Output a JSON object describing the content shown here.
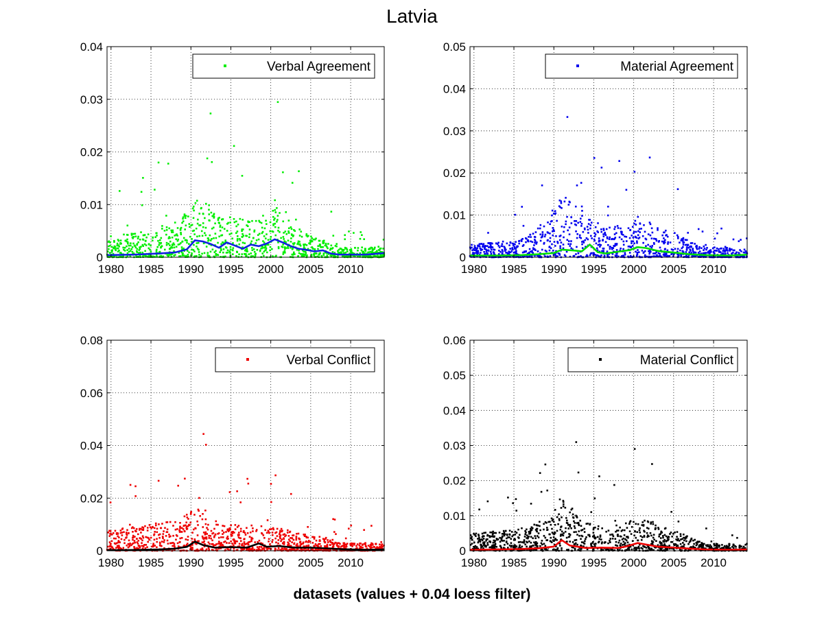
{
  "figure": {
    "title": "Latvia",
    "xlabel": "datasets (values + 0.04 loess filter)"
  },
  "chart_data": [
    {
      "type": "scatter",
      "x_ticks": [
        1980,
        1985,
        1990,
        1995,
        2000,
        2005,
        2010
      ],
      "xlim": [
        1979.5,
        2014.2
      ],
      "ylim": [
        0,
        0.04
      ],
      "y_ticks": [
        "0",
        "0.01",
        "0.02",
        "0.03",
        "0.04"
      ],
      "y_tick_values": [
        0,
        0.01,
        0.02,
        0.03,
        0.04
      ],
      "grid": true,
      "legend_position": "top-right",
      "series": [
        {
          "name": "Verbal Agreement",
          "kind": "points",
          "color": "#00ee00"
        },
        {
          "kind": "loess-line",
          "color": "#1020e0",
          "x": [
            1979.5,
            1983,
            1986,
            1988,
            1989.5,
            1990.5,
            1991.5,
            1992.5,
            1993.5,
            1994.5,
            1995.5,
            1996.5,
            1997.5,
            1998.5,
            1999.5,
            2000.5,
            2001.5,
            2002.5,
            2003.5,
            2004.5,
            2005.5,
            2006.5,
            2007.5,
            2008.5,
            2010,
            2012,
            2014.2
          ],
          "y": [
            0.0004,
            0.0005,
            0.0007,
            0.0009,
            0.0015,
            0.0032,
            0.003,
            0.0025,
            0.0018,
            0.0028,
            0.0022,
            0.0016,
            0.0024,
            0.0021,
            0.0026,
            0.0034,
            0.0028,
            0.0021,
            0.0016,
            0.0014,
            0.0011,
            0.0013,
            0.0007,
            0.0005,
            0.0005,
            0.0005,
            0.0008
          ]
        }
      ],
      "envelope": {
        "x": [
          1980,
          1985,
          1988,
          1990,
          1991,
          1993,
          1995,
          1998,
          2000,
          2001,
          2003,
          2005,
          2007,
          2009,
          2014
        ],
        "y": [
          0.004,
          0.005,
          0.007,
          0.009,
          0.012,
          0.009,
          0.008,
          0.007,
          0.009,
          0.01,
          0.006,
          0.004,
          0.003,
          0.002,
          0.0018
        ]
      },
      "seed": 11
    },
    {
      "type": "scatter",
      "x_ticks": [
        1980,
        1985,
        1990,
        1995,
        2000,
        2005,
        2010
      ],
      "xlim": [
        1979.5,
        2014.2
      ],
      "ylim": [
        0,
        0.05
      ],
      "y_ticks": [
        "0",
        "0.01",
        "0.02",
        "0.03",
        "0.04",
        "0.05"
      ],
      "y_tick_values": [
        0,
        0.01,
        0.02,
        0.03,
        0.04,
        0.05
      ],
      "grid": true,
      "legend_position": "top-right",
      "series": [
        {
          "name": "Material Agreement",
          "kind": "points",
          "color": "#0000ee"
        },
        {
          "kind": "loess-line",
          "color": "#00dd00",
          "x": [
            1979.5,
            1983,
            1986,
            1988,
            1990,
            1991,
            1992.5,
            1993.5,
            1994.5,
            1995.5,
            1996.5,
            1998,
            1999.5,
            2000.5,
            2001.5,
            2003,
            2005,
            2007,
            2009,
            2012,
            2014.2
          ],
          "y": [
            0.0004,
            0.0004,
            0.0005,
            0.0007,
            0.001,
            0.0018,
            0.0016,
            0.0014,
            0.003,
            0.0012,
            0.0009,
            0.0013,
            0.0017,
            0.0024,
            0.0022,
            0.0015,
            0.0011,
            0.0007,
            0.0005,
            0.0004,
            0.0006
          ]
        }
      ],
      "envelope": {
        "x": [
          1980,
          1985,
          1988,
          1990,
          1991,
          1993,
          1995,
          1998,
          2000,
          2001,
          2003,
          2005,
          2007,
          2009,
          2014
        ],
        "y": [
          0.003,
          0.004,
          0.007,
          0.012,
          0.015,
          0.012,
          0.009,
          0.007,
          0.009,
          0.01,
          0.007,
          0.006,
          0.004,
          0.0025,
          0.002
        ]
      },
      "seed": 23
    },
    {
      "type": "scatter",
      "x_ticks": [
        1980,
        1985,
        1990,
        1995,
        2000,
        2005,
        2010
      ],
      "xlim": [
        1979.5,
        2014.2
      ],
      "ylim": [
        0,
        0.08
      ],
      "y_ticks": [
        "0",
        "0.02",
        "0.04",
        "0.06",
        "0.08"
      ],
      "y_tick_values": [
        0,
        0.02,
        0.04,
        0.06,
        0.08
      ],
      "grid": true,
      "legend_position": "top-right",
      "series": [
        {
          "name": "Verbal Conflict",
          "kind": "points",
          "color": "#ee0000"
        },
        {
          "kind": "loess-line",
          "color": "#000000",
          "x": [
            1979.5,
            1983,
            1986,
            1988,
            1989.5,
            1990.5,
            1991.5,
            1993,
            1995,
            1997,
            1998.5,
            1999.5,
            2001,
            2003,
            2005,
            2007,
            2009,
            2012,
            2014.2
          ],
          "y": [
            0.0002,
            0.0003,
            0.0005,
            0.0008,
            0.0015,
            0.0035,
            0.0022,
            0.0012,
            0.0014,
            0.0012,
            0.0028,
            0.0015,
            0.0018,
            0.0012,
            0.0012,
            0.0009,
            0.0006,
            0.0004,
            0.0005
          ]
        }
      ],
      "envelope": {
        "x": [
          1980,
          1985,
          1988,
          1990,
          1991,
          1993,
          1995,
          1998,
          2000,
          2001,
          2003,
          2005,
          2007,
          2009,
          2014
        ],
        "y": [
          0.008,
          0.01,
          0.012,
          0.015,
          0.018,
          0.012,
          0.01,
          0.01,
          0.009,
          0.009,
          0.007,
          0.006,
          0.005,
          0.003,
          0.003
        ]
      },
      "seed": 37
    },
    {
      "type": "scatter",
      "x_ticks": [
        1980,
        1985,
        1990,
        1995,
        2000,
        2005,
        2010
      ],
      "xlim": [
        1979.5,
        2014.2
      ],
      "ylim": [
        0,
        0.06
      ],
      "y_ticks": [
        "0",
        "0.01",
        "0.02",
        "0.03",
        "0.04",
        "0.05",
        "0.06"
      ],
      "y_tick_values": [
        0,
        0.01,
        0.02,
        0.03,
        0.04,
        0.05,
        0.06
      ],
      "grid": true,
      "legend_position": "top-right",
      "series": [
        {
          "name": "Material Conflict",
          "kind": "points",
          "color": "#000000"
        },
        {
          "kind": "loess-line",
          "color": "#ee0000",
          "x": [
            1979.5,
            1983,
            1986,
            1988,
            1990,
            1991,
            1992,
            1994,
            1996,
            1998,
            1999,
            2000.5,
            2001.5,
            2003,
            2005,
            2007,
            2009,
            2012,
            2014.2
          ],
          "y": [
            0.0003,
            0.0004,
            0.0005,
            0.0007,
            0.0012,
            0.003,
            0.0015,
            0.0008,
            0.0009,
            0.0008,
            0.0012,
            0.0022,
            0.0018,
            0.0012,
            0.0009,
            0.0006,
            0.0004,
            0.0003,
            0.0004
          ]
        }
      ],
      "envelope": {
        "x": [
          1980,
          1985,
          1988,
          1990,
          1991,
          1993,
          1995,
          1998,
          2000,
          2001,
          2003,
          2005,
          2007,
          2009,
          2014
        ],
        "y": [
          0.005,
          0.006,
          0.008,
          0.012,
          0.016,
          0.01,
          0.007,
          0.007,
          0.009,
          0.01,
          0.007,
          0.006,
          0.004,
          0.002,
          0.002
        ]
      },
      "seed": 53
    }
  ]
}
